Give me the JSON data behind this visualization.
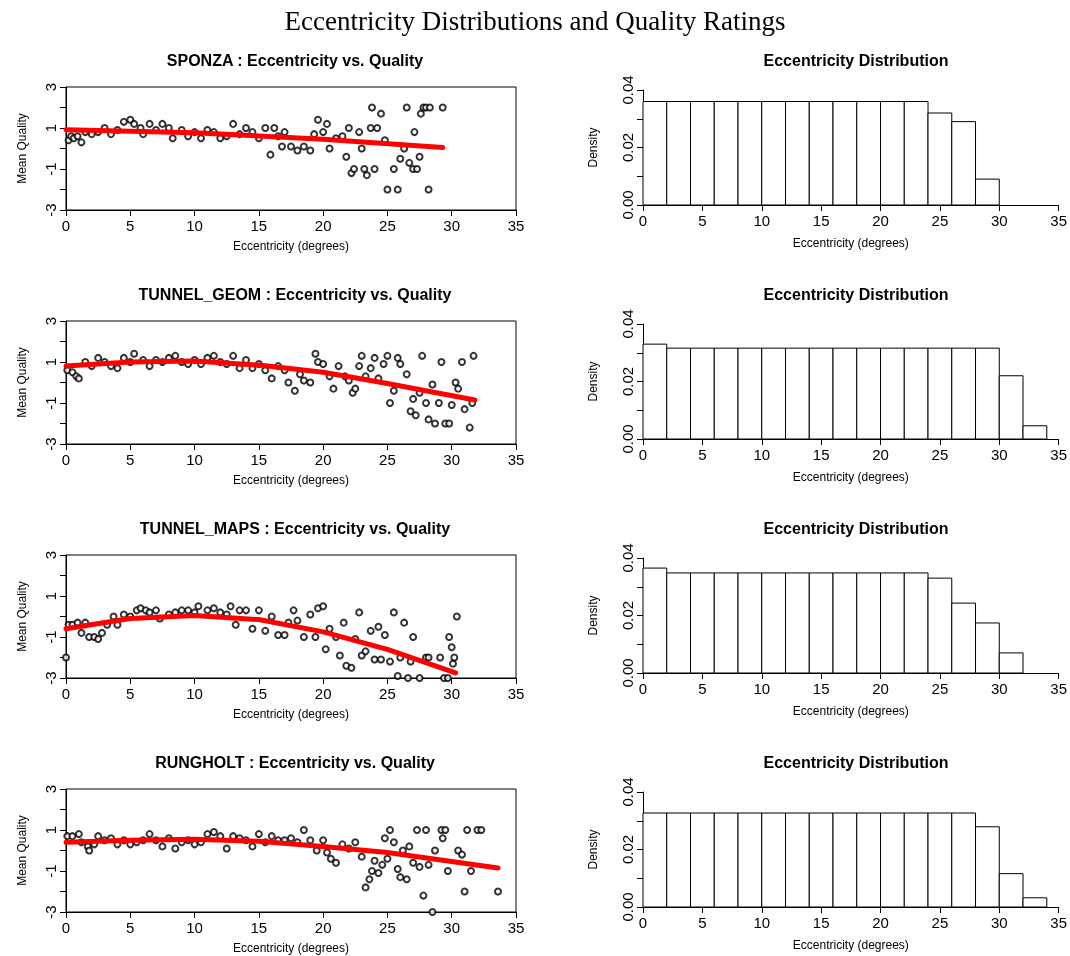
{
  "chart_data": [
    {
      "type": "scatter",
      "title": "SPONZA : Eccentricity vs. Quality",
      "xlabel": "Eccentricity (degrees)",
      "ylabel": "Mean Quality",
      "annotations": [
        "Eccentricity Distributions and Quality Ratings"
      ],
      "xlim": [
        0,
        35
      ],
      "xticks": [
        0,
        5,
        10,
        15,
        20,
        25,
        30,
        35
      ],
      "ylim": [
        -3,
        3
      ],
      "yticks": [
        -3,
        {
          "value": -2,
          "label": null
        },
        -1,
        {
          "value": 0,
          "label": null
        },
        1,
        {
          "value": 2,
          "label": null
        },
        3
      ],
      "series": [
        {
          "type": "scatter",
          "marker": "circle",
          "color": "#000000",
          "x": [
            0.2,
            0.4,
            0.6,
            0.9,
            1.2,
            1.5,
            2,
            2.5,
            3,
            3.5,
            4,
            4.5,
            5,
            5.3,
            5.8,
            6,
            6.5,
            7,
            7.5,
            8,
            8.3,
            9,
            9.5,
            10,
            10.5,
            11,
            11.5,
            12,
            12.5,
            13,
            13.5,
            14,
            14.5,
            15,
            15.5,
            15.9,
            16.2,
            16.5,
            16.8,
            17,
            17.5,
            18,
            18.5,
            19,
            19.3,
            19.6,
            20,
            20.3,
            20.5,
            21,
            21.5,
            21.8,
            22,
            22.2,
            22.4,
            22.8,
            23,
            23.2,
            23.4,
            23.7,
            23.8,
            24,
            24.2,
            24.5,
            24.8,
            25,
            25.5,
            25.8,
            26,
            26.3,
            26.5,
            26.7,
            27,
            27.1,
            27.3,
            27.5,
            27.6,
            27.8,
            28,
            28.2,
            28.3,
            29.3
          ],
          "values": [
            0.4,
            0.6,
            0.5,
            0.6,
            0.3,
            0.8,
            0.7,
            0.8,
            1.0,
            0.7,
            0.9,
            1.3,
            1.4,
            1.2,
            1.0,
            0.7,
            1.2,
            0.9,
            1.2,
            1.0,
            0.5,
            0.9,
            0.6,
            0.8,
            0.5,
            0.9,
            0.8,
            0.5,
            0.6,
            1.2,
            0.7,
            1.0,
            0.8,
            0.5,
            1.0,
            -0.3,
            1.0,
            0.6,
            0.1,
            0.8,
            0.1,
            -0.1,
            0.1,
            -0.1,
            0.7,
            1.4,
            0.8,
            1.2,
            0.0,
            0.5,
            0.6,
            -0.4,
            1.0,
            -1.2,
            -1.0,
            0.8,
            0.0,
            -1.0,
            -1.3,
            1.0,
            2.0,
            -1.0,
            1.0,
            1.7,
            0.4,
            -2.0,
            -1.0,
            -2.0,
            -0.5,
            0.0,
            2.0,
            -0.7,
            -1.0,
            0.8,
            -1.0,
            -0.4,
            1.7,
            2.0,
            2.0,
            -2.0,
            2.0,
            2.0
          ]
        },
        {
          "type": "line",
          "marker": "none",
          "color": "#ff0000",
          "x": [
            0,
            10,
            20,
            29.3
          ],
          "values": [
            0.92,
            0.77,
            0.45,
            0.05
          ]
        }
      ]
    },
    {
      "type": "histogram",
      "title": "Eccentricity Distribution",
      "xlabel": "Eccentricity (degrees)",
      "ylabel": "Density",
      "color": "#ffffff",
      "bins": [
        0,
        2,
        4,
        6,
        8,
        10,
        12,
        14,
        16,
        18,
        20,
        22,
        24,
        26,
        28,
        30
      ],
      "values": [
        0.036,
        0.036,
        0.036,
        0.036,
        0.036,
        0.036,
        0.036,
        0.036,
        0.036,
        0.036,
        0.036,
        0.036,
        0.032,
        0.029,
        0.009
      ],
      "xlim": [
        0,
        35
      ],
      "xticks": [
        0,
        5,
        10,
        15,
        20,
        25,
        30,
        35
      ],
      "ylim": [
        0,
        0.04
      ],
      "yticks": [
        {
          "value": 0,
          "label": "0.00"
        },
        {
          "value": 0.01,
          "label": null
        },
        0.02,
        {
          "value": 0.03,
          "label": null
        },
        0.04
      ]
    },
    {
      "type": "scatter",
      "title": "TUNNEL_GEOM : Eccentricity vs. Quality",
      "xlabel": "Eccentricity (degrees)",
      "ylabel": "Mean Quality",
      "xlim": [
        0,
        35
      ],
      "xticks": [
        0,
        5,
        10,
        15,
        20,
        25,
        30,
        35
      ],
      "ylim": [
        -3,
        3
      ],
      "yticks": [
        -3,
        {
          "value": -2,
          "label": null
        },
        -1,
        {
          "value": 0,
          "label": null
        },
        1,
        {
          "value": 2,
          "label": null
        },
        3
      ],
      "series": [
        {
          "type": "scatter",
          "marker": "circle",
          "color": "#000000",
          "x": [
            0.1,
            0.5,
            0.8,
            1,
            1.5,
            2,
            2.5,
            3,
            3.5,
            4,
            4.5,
            5,
            5.3,
            6,
            6.5,
            7,
            7.5,
            8,
            8.5,
            9,
            9.5,
            10,
            10.5,
            11,
            11.5,
            12,
            12.5,
            13,
            13.5,
            14,
            14.5,
            15,
            15.5,
            16,
            16.5,
            17,
            17.3,
            17.8,
            18.2,
            18.5,
            19,
            19.4,
            19.6,
            20,
            20.5,
            20.8,
            21.2,
            21.7,
            22,
            22.3,
            22.5,
            22.8,
            23,
            23.3,
            23.7,
            24,
            24.3,
            24.7,
            25,
            25.2,
            25.5,
            25.8,
            26,
            26.5,
            26.8,
            27,
            27.2,
            27.5,
            27.7,
            28,
            28.2,
            28.5,
            28.7,
            29,
            29.2,
            29.5,
            29.8,
            30,
            30.3,
            30.5,
            30.8,
            31,
            31.4,
            31.6,
            31.7
          ],
          "values": [
            0.6,
            0.5,
            0.3,
            0.2,
            1.0,
            0.8,
            1.2,
            1.0,
            0.8,
            0.7,
            1.2,
            1.0,
            1.4,
            1.1,
            0.8,
            1.1,
            1.0,
            1.2,
            1.3,
            1.0,
            0.9,
            1.1,
            0.9,
            1.2,
            1.3,
            1.0,
            0.9,
            1.3,
            0.7,
            1.1,
            0.7,
            0.9,
            0.6,
            0.2,
            0.8,
            0.6,
            0.0,
            -0.4,
            0.4,
            0.1,
            0.0,
            1.4,
            1.0,
            0.9,
            0.3,
            -0.3,
            0.8,
            0.3,
            0.1,
            -0.5,
            -0.3,
            0.8,
            1.3,
            0.3,
            0.7,
            1.2,
            0.2,
            0.9,
            1.3,
            -1.0,
            -0.4,
            1.2,
            0.9,
            0.4,
            -1.4,
            -0.8,
            -1.6,
            -0.5,
            1.3,
            -1.0,
            -1.8,
            -0.1,
            -2.0,
            -1.0,
            1.0,
            -2.0,
            -2.0,
            -1.1,
            0.0,
            -0.3,
            1.0,
            -1.3,
            -2.2,
            -1.0,
            1.3
          ]
        },
        {
          "type": "line",
          "marker": "none",
          "color": "#ff0000",
          "x": [
            0,
            5,
            10,
            15,
            20,
            25,
            31.8
          ],
          "values": [
            0.8,
            1.0,
            1.05,
            0.85,
            0.5,
            -0.05,
            -0.85
          ]
        }
      ]
    },
    {
      "type": "histogram",
      "title": "Eccentricity Distribution",
      "xlabel": "Eccentricity (degrees)",
      "ylabel": "Density",
      "color": "#ffffff",
      "bins": [
        0,
        2,
        4,
        6,
        8,
        10,
        12,
        14,
        16,
        18,
        20,
        22,
        24,
        26,
        28,
        30,
        32,
        34
      ],
      "values": [
        0.033,
        0.0316,
        0.0316,
        0.0316,
        0.0316,
        0.0316,
        0.0316,
        0.0316,
        0.0316,
        0.0316,
        0.0316,
        0.0316,
        0.0316,
        0.0316,
        0.0316,
        0.022,
        0.0046
      ],
      "xlim": [
        0,
        35
      ],
      "xticks": [
        0,
        5,
        10,
        15,
        20,
        25,
        30,
        35
      ],
      "ylim": [
        0,
        0.04
      ],
      "yticks": [
        {
          "value": 0,
          "label": "0.00"
        },
        {
          "value": 0.01,
          "label": null
        },
        0.02,
        {
          "value": 0.03,
          "label": null
        },
        0.04
      ]
    },
    {
      "type": "scatter",
      "title": "TUNNEL_MAPS : Eccentricity vs. Quality",
      "xlabel": "Eccentricity (degrees)",
      "ylabel": "Mean Quality",
      "xlim": [
        0,
        35
      ],
      "xticks": [
        0,
        5,
        10,
        15,
        20,
        25,
        30,
        35
      ],
      "ylim": [
        -3,
        3
      ],
      "yticks": [
        -3,
        {
          "value": -2,
          "label": null
        },
        -1,
        {
          "value": 0,
          "label": null
        },
        1,
        {
          "value": 2,
          "label": null
        },
        3
      ],
      "series": [
        {
          "type": "scatter",
          "marker": "circle",
          "color": "#000000",
          "x": [
            0,
            0.2,
            0.5,
            0.9,
            1.2,
            1.5,
            1.8,
            2.2,
            2.5,
            2.8,
            3.2,
            3.7,
            4,
            4.5,
            5,
            5.5,
            5.8,
            6.2,
            6.5,
            7,
            7.3,
            8,
            8.5,
            9,
            9.5,
            10,
            10.3,
            11,
            11.5,
            12,
            12.5,
            12.8,
            13.2,
            13.5,
            14,
            14.5,
            15,
            15.5,
            16,
            16.5,
            17,
            17.3,
            17.7,
            18,
            18.5,
            19,
            19.4,
            19.6,
            20,
            20.2,
            20.5,
            21,
            21.3,
            21.6,
            21.8,
            22.2,
            22.5,
            22.8,
            23,
            23.3,
            23.7,
            24,
            24.3,
            24.5,
            24.8,
            25.2,
            25.5,
            25.8,
            26,
            26.3,
            26.6,
            26.8,
            27,
            27.5,
            28,
            28.2,
            29.1,
            29.4,
            29.7,
            29.8,
            30,
            30.1,
            30.2,
            30.4
          ],
          "values": [
            -2.0,
            -0.4,
            -0.4,
            -0.3,
            -0.8,
            -0.3,
            -1.0,
            -1.0,
            -1.1,
            -0.8,
            -0.4,
            0.0,
            -0.4,
            0.1,
            0.0,
            0.3,
            0.4,
            0.3,
            0.2,
            0.3,
            -0.1,
            0.1,
            0.2,
            0.3,
            0.3,
            0.2,
            0.5,
            0.3,
            0.4,
            0.2,
            0.1,
            0.5,
            -0.4,
            0.3,
            0.3,
            -0.6,
            0.3,
            -0.7,
            0.0,
            -0.9,
            -0.9,
            -0.3,
            0.3,
            -0.2,
            -1.0,
            0.1,
            -1.0,
            0.4,
            0.5,
            -1.6,
            -0.6,
            -1.0,
            -1.9,
            -0.3,
            -2.4,
            -2.5,
            -1.1,
            0.2,
            -1.9,
            -1.7,
            -0.7,
            -2.1,
            -0.5,
            -2.1,
            -0.9,
            -2.2,
            0.2,
            -2.9,
            -2.0,
            -0.3,
            -3.0,
            -2.2,
            -1.0,
            -3.0,
            -2.0,
            -2.0,
            -2.0,
            -3.0,
            -3.0,
            -1.0,
            -1.5,
            -2.3,
            -2.0,
            0.0
          ]
        },
        {
          "type": "line",
          "marker": "none",
          "color": "#ff0000",
          "x": [
            0,
            5,
            10,
            15,
            20,
            25,
            30.3
          ],
          "values": [
            -0.6,
            -0.1,
            0.05,
            -0.15,
            -0.75,
            -1.6,
            -2.75
          ]
        }
      ]
    },
    {
      "type": "histogram",
      "title": "Eccentricity Distribution",
      "xlabel": "Eccentricity (degrees)",
      "ylabel": "Density",
      "color": "#ffffff",
      "bins": [
        0,
        2,
        4,
        6,
        8,
        10,
        12,
        14,
        16,
        18,
        20,
        22,
        24,
        26,
        28,
        30,
        32
      ],
      "values": [
        0.0365,
        0.0348,
        0.0348,
        0.0348,
        0.0348,
        0.0348,
        0.0348,
        0.0348,
        0.0348,
        0.0348,
        0.0348,
        0.0348,
        0.033,
        0.0243,
        0.0174,
        0.007
      ],
      "xlim": [
        0,
        35
      ],
      "xticks": [
        0,
        5,
        10,
        15,
        20,
        25,
        30,
        35
      ],
      "ylim": [
        0,
        0.04
      ],
      "yticks": [
        {
          "value": 0,
          "label": "0.00"
        },
        {
          "value": 0.01,
          "label": null
        },
        0.02,
        {
          "value": 0.03,
          "label": null
        },
        0.04
      ]
    },
    {
      "type": "scatter",
      "title": "RUNGHOLT : Eccentricity vs. Quality",
      "xlabel": "Eccentricity (degrees)",
      "ylabel": "Mean Quality",
      "xlim": [
        0,
        35
      ],
      "xticks": [
        0,
        5,
        10,
        15,
        20,
        25,
        30,
        35
      ],
      "ylim": [
        -3,
        3
      ],
      "yticks": [
        -3,
        {
          "value": -2,
          "label": null
        },
        -1,
        {
          "value": 0,
          "label": null
        },
        1,
        {
          "value": 2,
          "label": null
        },
        3
      ],
      "series": [
        {
          "type": "scatter",
          "marker": "circle",
          "color": "#000000",
          "x": [
            0.1,
            0.5,
            1,
            1.2,
            1.7,
            1.8,
            2.2,
            2.5,
            3,
            3.5,
            4,
            4.5,
            5,
            5.5,
            6,
            6.5,
            7,
            7.5,
            8,
            8.5,
            9,
            9.5,
            10,
            10.5,
            11,
            11.5,
            12,
            12.5,
            13,
            13.5,
            14,
            14.5,
            15,
            15.5,
            16,
            16.5,
            17,
            17.5,
            18,
            18.5,
            19,
            19.5,
            20,
            20.3,
            20.6,
            21,
            21.5,
            22,
            22.5,
            23,
            23.3,
            23.6,
            23.8,
            24,
            24.3,
            24.6,
            24.8,
            25,
            25.2,
            25.5,
            25.8,
            26,
            26.2,
            26.5,
            26.7,
            27,
            27.3,
            27.5,
            27.8,
            28,
            28.2,
            28.5,
            28.7,
            29.2,
            29.3,
            29.5,
            29.7,
            30.5,
            30.8,
            31,
            31.2,
            31.5,
            32,
            32.3,
            33.6
          ],
          "values": [
            0.7,
            0.7,
            0.8,
            0.4,
            0.2,
            0.0,
            0.3,
            0.7,
            0.5,
            0.6,
            0.3,
            0.5,
            0.3,
            0.4,
            0.5,
            0.8,
            0.5,
            0.2,
            0.6,
            0.1,
            0.4,
            0.5,
            0.3,
            0.4,
            0.8,
            0.9,
            0.7,
            0.1,
            0.7,
            0.6,
            0.5,
            0.2,
            0.8,
            0.4,
            0.7,
            0.5,
            0.5,
            0.6,
            0.4,
            1.0,
            0.5,
            0.0,
            0.5,
            -0.1,
            -0.4,
            -0.6,
            0.3,
            0.1,
            0.4,
            -0.3,
            -1.8,
            -1.4,
            -1.0,
            -0.5,
            -1.1,
            -0.7,
            0.6,
            -0.4,
            1.0,
            0.4,
            -0.9,
            -1.3,
            0.0,
            -1.4,
            0.2,
            -0.6,
            1.0,
            -0.8,
            -2.2,
            1.0,
            -0.7,
            -3.0,
            0.0,
            1.0,
            0.6,
            1.0,
            -1.0,
            0.0,
            -0.2,
            -2.0,
            1.0,
            -1.0,
            1.0,
            1.0,
            -2.0
          ]
        },
        {
          "type": "line",
          "marker": "none",
          "color": "#ff0000",
          "x": [
            0,
            5,
            10,
            15,
            20,
            25,
            33.6
          ],
          "values": [
            0.4,
            0.5,
            0.55,
            0.45,
            0.2,
            -0.1,
            -0.85
          ]
        }
      ]
    },
    {
      "type": "histogram",
      "title": "Eccentricity Distribution",
      "xlabel": "Eccentricity (degrees)",
      "ylabel": "Density",
      "color": "#ffffff",
      "bins": [
        0,
        2,
        4,
        6,
        8,
        10,
        12,
        14,
        16,
        18,
        20,
        22,
        24,
        26,
        28,
        30,
        32,
        34
      ],
      "values": [
        0.0327,
        0.0327,
        0.0327,
        0.0327,
        0.0327,
        0.0327,
        0.0327,
        0.0327,
        0.0327,
        0.0327,
        0.0327,
        0.0327,
        0.0327,
        0.0327,
        0.0279,
        0.0116,
        0.0032
      ],
      "xlim": [
        0,
        35
      ],
      "xticks": [
        0,
        5,
        10,
        15,
        20,
        25,
        30,
        35
      ],
      "ylim": [
        0,
        0.04
      ],
      "yticks": [
        {
          "value": 0,
          "label": "0.00"
        },
        {
          "value": 0.01,
          "label": null
        },
        0.02,
        {
          "value": 0.03,
          "label": null
        },
        0.04
      ]
    }
  ]
}
